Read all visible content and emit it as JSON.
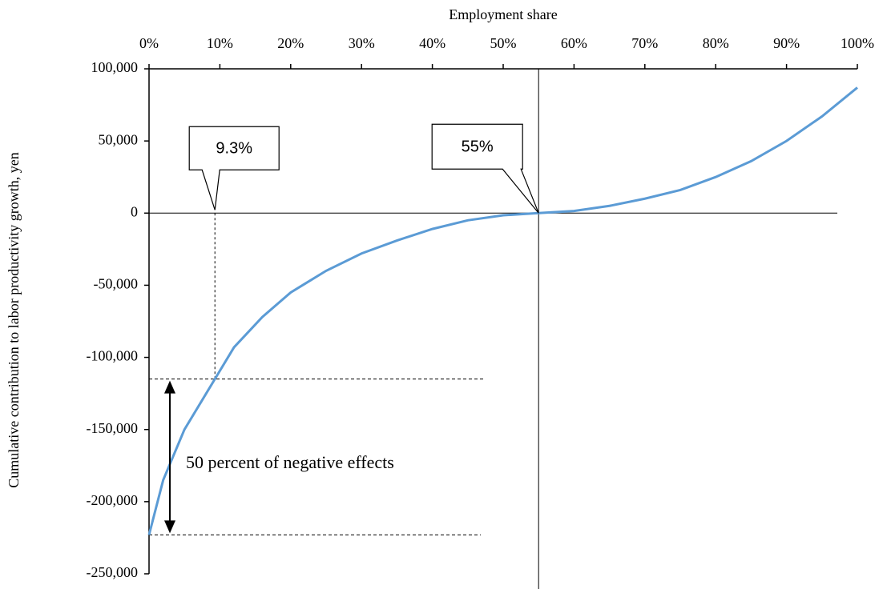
{
  "chart_data": {
    "type": "line",
    "xlabel": "Employment share",
    "ylabel": "Cumulative contribution to labor productivity growth, yen",
    "x": [
      0,
      2,
      5,
      9.3,
      12,
      16,
      20,
      25,
      30,
      35,
      40,
      45,
      50,
      55,
      60,
      65,
      70,
      75,
      80,
      85,
      90,
      95,
      100
    ],
    "series": [
      {
        "name": "Cumulative contribution",
        "color": "#5b9bd5",
        "values": [
          -223000,
          -185000,
          -150000,
          -115000,
          -93000,
          -72000,
          -55000,
          -40000,
          -28000,
          -19000,
          -11000,
          -5000,
          -1500,
          0,
          1500,
          5000,
          10000,
          16000,
          25000,
          36000,
          50000,
          67000,
          87000
        ]
      }
    ],
    "xlim": [
      0,
      100
    ],
    "xticks": [
      {
        "value": 0,
        "label": "0%"
      },
      {
        "value": 10,
        "label": "10%"
      },
      {
        "value": 20,
        "label": "20%"
      },
      {
        "value": 30,
        "label": "30%"
      },
      {
        "value": 40,
        "label": "40%"
      },
      {
        "value": 50,
        "label": "50%"
      },
      {
        "value": 60,
        "label": "60%"
      },
      {
        "value": 70,
        "label": "70%"
      },
      {
        "value": 80,
        "label": "80%"
      },
      {
        "value": 90,
        "label": "90%"
      },
      {
        "value": 100,
        "label": "100%"
      }
    ],
    "ylim": [
      -250000,
      100000
    ],
    "yticks": [
      {
        "value": 100000,
        "label": "100,000"
      },
      {
        "value": 50000,
        "label": "50,000"
      },
      0,
      {
        "value": -50000,
        "label": "-50,000"
      },
      {
        "value": -100000,
        "label": "-100,000"
      },
      {
        "value": -150000,
        "label": "-150,000"
      },
      {
        "value": -200000,
        "label": "-200,000"
      },
      {
        "value": -250000,
        "label": "-250,000"
      }
    ],
    "annotations": [
      {
        "text": "9.3%",
        "x": 9.3,
        "y": 0
      },
      {
        "text": "55%",
        "x": 55,
        "y": 0
      }
    ],
    "bracket": {
      "text": "50 percent of negative effects",
      "y_top": -115000,
      "y_bottom": -223000
    }
  }
}
